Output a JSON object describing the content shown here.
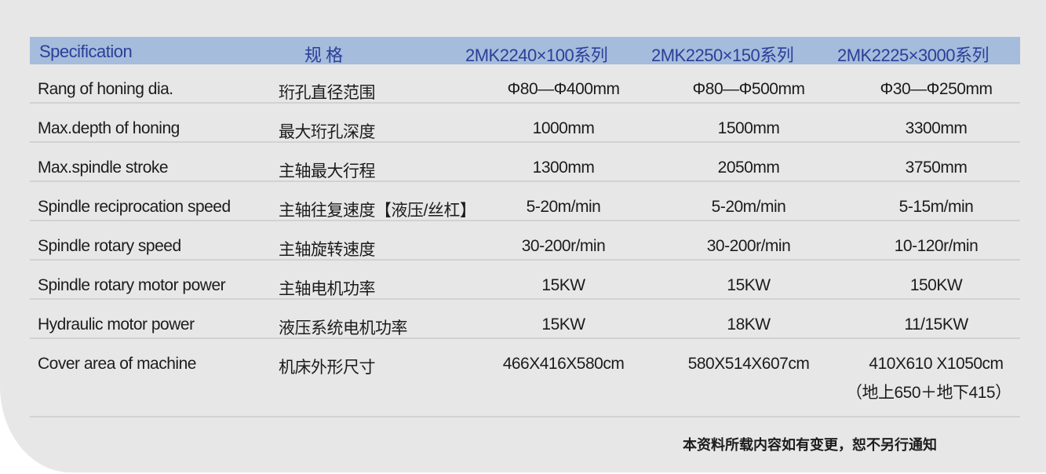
{
  "header": [
    "Specification",
    "规 格",
    "2MK2240×100系列",
    "2MK2250×150系列",
    "2MK2225×3000系列"
  ],
  "rows": [
    [
      "Rang of honing dia.",
      "珩孔直径范围",
      "Φ80—Φ400mm",
      "Φ80—Φ500mm",
      "Φ30—Φ250mm"
    ],
    [
      "Max.depth of honing",
      "最大珩孔深度",
      "1000mm",
      "1500mm",
      "3300mm"
    ],
    [
      "Max.spindle stroke",
      "主轴最大行程",
      "1300mm",
      "2050mm",
      "3750mm"
    ],
    [
      "Spindle reciprocation speed",
      "主轴往复速度【液压/丝杠】",
      "5-20m/min",
      "5-20m/min",
      "5-15m/min"
    ],
    [
      "Spindle rotary speed",
      "主轴旋转速度",
      "30-200r/min",
      "30-200r/min",
      "10-120r/min"
    ],
    [
      "Spindle rotary motor power",
      "主轴电机功率",
      "15KW",
      "15KW",
      "150KW"
    ],
    [
      "Hydraulic motor power",
      "液压系统电机功率",
      "15KW",
      "18KW",
      "11/15KW"
    ],
    [
      "Cover area of machine",
      "机床外形尺寸",
      "466X416X580cm",
      "580X514X607cm",
      "410X610 X1050cm"
    ]
  ],
  "cover_area_note": "（地上650＋地下415）",
  "footer_note": "本资料所载内容如有变更，恕不另行通知"
}
